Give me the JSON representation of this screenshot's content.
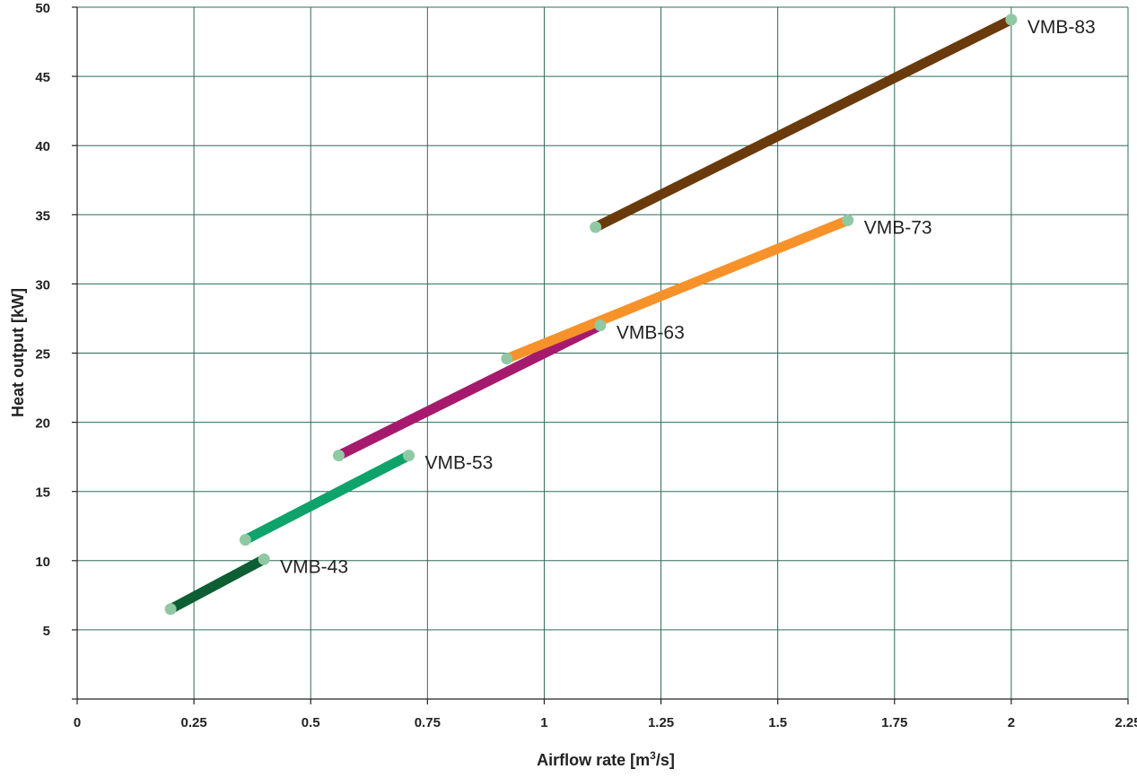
{
  "chart_data": {
    "type": "line",
    "title": "",
    "xlabel": "Airflow rate [m3/s]",
    "xlabel_parts": {
      "prefix": "Airflow rate [m",
      "sup": "3",
      "suffix": "/s]"
    },
    "ylabel": "Heat output [kW]",
    "xlim": [
      0,
      2.25
    ],
    "ylim": [
      0,
      50
    ],
    "x_ticks": [
      0,
      0.25,
      0.5,
      0.75,
      1,
      1.25,
      1.5,
      1.75,
      2,
      2.25
    ],
    "x_tick_labels": [
      "0",
      "0.25",
      "0.5",
      "0.75",
      "1",
      "1.25",
      "1.5",
      "1.75",
      "2",
      "2.25"
    ],
    "y_ticks": [
      5,
      10,
      15,
      20,
      25,
      30,
      35,
      40,
      45,
      50
    ],
    "y_tick_labels": [
      "5",
      "10",
      "15",
      "20",
      "25",
      "30",
      "35",
      "40",
      "45",
      "50"
    ],
    "grid": true,
    "legend": "none",
    "marker_color": "#8fc9a3",
    "series": [
      {
        "name": "VMB-43",
        "color": "#0d5e33",
        "x": [
          0.2,
          0.4
        ],
        "y": [
          6.5,
          10.1
        ]
      },
      {
        "name": "VMB-53",
        "color": "#0ea36a",
        "x": [
          0.36,
          0.71
        ],
        "y": [
          11.5,
          17.6
        ]
      },
      {
        "name": "VMB-63",
        "color": "#a61a6e",
        "x": [
          0.56,
          1.12
        ],
        "y": [
          17.6,
          27.0
        ]
      },
      {
        "name": "VMB-73",
        "color": "#f7922a",
        "x": [
          0.92,
          1.65
        ],
        "y": [
          24.6,
          34.6
        ]
      },
      {
        "name": "VMB-83",
        "color": "#6b3a0c",
        "x": [
          1.11,
          2.0
        ],
        "y": [
          34.1,
          49.1
        ]
      }
    ]
  }
}
